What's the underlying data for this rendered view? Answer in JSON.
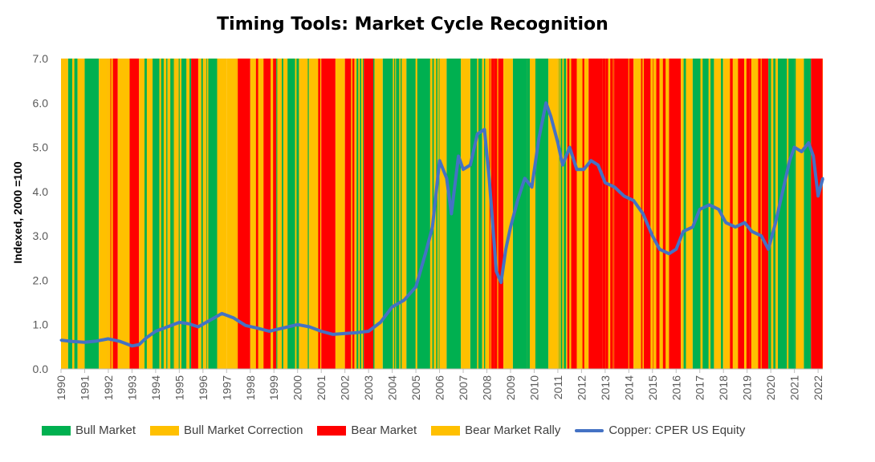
{
  "chart_data": {
    "type": "line",
    "title": "Timing Tools: Market Cycle Recognition",
    "ylabel": "Indexed, 2000 =100",
    "xlabel": "",
    "ylim": [
      0,
      7
    ],
    "xlim": [
      1990,
      2022.2
    ],
    "yticks": [
      "0.0",
      "1.0",
      "2.0",
      "3.0",
      "4.0",
      "5.0",
      "6.0",
      "7.0"
    ],
    "xticks": [
      "1990",
      "1991",
      "1992",
      "1993",
      "1994",
      "1995",
      "1996",
      "1997",
      "1998",
      "1999",
      "2000",
      "2001",
      "2002",
      "2003",
      "2004",
      "2005",
      "2006",
      "2007",
      "2008",
      "2009",
      "2010",
      "2011",
      "2012",
      "2013",
      "2014",
      "2015",
      "2016",
      "2017",
      "2018",
      "2019",
      "2020",
      "2021",
      "2022"
    ],
    "grid": false,
    "legend_position": "bottom",
    "colors": {
      "bull": "#00B050",
      "bull_correction": "#FFC000",
      "bear": "#FF0000",
      "bear_rally": "#FFC000",
      "copper": "#4472C4"
    },
    "legend": [
      {
        "label": "Bull Market",
        "color": "#00B050",
        "kind": "box"
      },
      {
        "label": "Bull Market Correction",
        "color": "#FFC000",
        "kind": "box"
      },
      {
        "label": "Bear Market",
        "color": "#FF0000",
        "kind": "box"
      },
      {
        "label": "Bear Market Rally",
        "color": "#FFC000",
        "kind": "box"
      },
      {
        "label": "Copper: CPER US Equity",
        "color": "#4472C4",
        "kind": "line"
      }
    ],
    "regimes": [
      {
        "start": 1990.0,
        "end": 1990.3,
        "state": "bull_correction"
      },
      {
        "start": 1990.3,
        "end": 1990.7,
        "state": "bull"
      },
      {
        "start": 1990.7,
        "end": 1991.0,
        "state": "bull_correction"
      },
      {
        "start": 1991.0,
        "end": 1991.6,
        "state": "bull"
      },
      {
        "start": 1991.6,
        "end": 1992.0,
        "state": "bull_correction"
      },
      {
        "start": 1992.0,
        "end": 1992.4,
        "state": "bear"
      },
      {
        "start": 1992.4,
        "end": 1992.9,
        "state": "bear_rally"
      },
      {
        "start": 1992.9,
        "end": 1993.3,
        "state": "bear"
      },
      {
        "start": 1993.3,
        "end": 1993.8,
        "state": "bull_correction"
      },
      {
        "start": 1993.8,
        "end": 1994.5,
        "state": "bull"
      },
      {
        "start": 1994.5,
        "end": 1994.9,
        "state": "bull_correction"
      },
      {
        "start": 1994.9,
        "end": 1995.5,
        "state": "bull"
      },
      {
        "start": 1995.5,
        "end": 1995.8,
        "state": "bear"
      },
      {
        "start": 1995.8,
        "end": 1996.1,
        "state": "bull_correction"
      },
      {
        "start": 1996.1,
        "end": 1996.6,
        "state": "bull"
      },
      {
        "start": 1996.6,
        "end": 1997.0,
        "state": "bull_correction"
      },
      {
        "start": 1997.0,
        "end": 1997.4,
        "state": "bear_rally"
      },
      {
        "start": 1997.4,
        "end": 1998.0,
        "state": "bear"
      },
      {
        "start": 1998.0,
        "end": 1998.6,
        "state": "bear_rally"
      },
      {
        "start": 1998.6,
        "end": 1999.1,
        "state": "bear"
      },
      {
        "start": 1999.1,
        "end": 1999.6,
        "state": "bull_correction"
      },
      {
        "start": 1999.6,
        "end": 2000.1,
        "state": "bull"
      },
      {
        "start": 2000.1,
        "end": 2000.5,
        "state": "bull_correction"
      },
      {
        "start": 2000.5,
        "end": 2001.0,
        "state": "bear_rally"
      },
      {
        "start": 2001.0,
        "end": 2001.6,
        "state": "bear"
      },
      {
        "start": 2001.6,
        "end": 2002.0,
        "state": "bear_rally"
      },
      {
        "start": 2002.0,
        "end": 2002.4,
        "state": "bear"
      },
      {
        "start": 2002.4,
        "end": 2002.8,
        "state": "bull_correction"
      },
      {
        "start": 2002.8,
        "end": 2003.2,
        "state": "bear"
      },
      {
        "start": 2003.2,
        "end": 2003.6,
        "state": "bull_correction"
      },
      {
        "start": 2003.6,
        "end": 2004.3,
        "state": "bull"
      },
      {
        "start": 2004.3,
        "end": 2004.6,
        "state": "bull_correction"
      },
      {
        "start": 2004.6,
        "end": 2006.0,
        "state": "bull"
      },
      {
        "start": 2006.0,
        "end": 2006.3,
        "state": "bull_correction"
      },
      {
        "start": 2006.3,
        "end": 2006.9,
        "state": "bull"
      },
      {
        "start": 2006.9,
        "end": 2007.3,
        "state": "bull_correction"
      },
      {
        "start": 2007.3,
        "end": 2007.8,
        "state": "bull"
      },
      {
        "start": 2007.8,
        "end": 2008.0,
        "state": "bull_correction"
      },
      {
        "start": 2008.0,
        "end": 2008.3,
        "state": "bear_rally"
      },
      {
        "start": 2008.3,
        "end": 2008.7,
        "state": "bear"
      },
      {
        "start": 2008.7,
        "end": 2009.1,
        "state": "bear_rally"
      },
      {
        "start": 2009.1,
        "end": 2009.7,
        "state": "bull"
      },
      {
        "start": 2009.7,
        "end": 2010.1,
        "state": "bull_correction"
      },
      {
        "start": 2010.1,
        "end": 2010.6,
        "state": "bull"
      },
      {
        "start": 2010.6,
        "end": 2011.0,
        "state": "bull_correction"
      },
      {
        "start": 2011.0,
        "end": 2011.4,
        "state": "bull"
      },
      {
        "start": 2011.4,
        "end": 2011.8,
        "state": "bear"
      },
      {
        "start": 2011.8,
        "end": 2012.3,
        "state": "bear_rally"
      },
      {
        "start": 2012.3,
        "end": 2012.9,
        "state": "bear"
      },
      {
        "start": 2012.9,
        "end": 2013.4,
        "state": "bear_rally"
      },
      {
        "start": 2013.4,
        "end": 2014.2,
        "state": "bear"
      },
      {
        "start": 2014.2,
        "end": 2014.6,
        "state": "bear_rally"
      },
      {
        "start": 2014.6,
        "end": 2015.3,
        "state": "bear"
      },
      {
        "start": 2015.3,
        "end": 2015.7,
        "state": "bear_rally"
      },
      {
        "start": 2015.7,
        "end": 2016.2,
        "state": "bear"
      },
      {
        "start": 2016.2,
        "end": 2016.7,
        "state": "bull_correction"
      },
      {
        "start": 2016.7,
        "end": 2017.6,
        "state": "bull"
      },
      {
        "start": 2017.6,
        "end": 2018.0,
        "state": "bull_correction"
      },
      {
        "start": 2018.0,
        "end": 2018.5,
        "state": "bear_rally"
      },
      {
        "start": 2018.5,
        "end": 2019.1,
        "state": "bear"
      },
      {
        "start": 2019.1,
        "end": 2019.5,
        "state": "bear_rally"
      },
      {
        "start": 2019.5,
        "end": 2019.9,
        "state": "bear"
      },
      {
        "start": 2019.9,
        "end": 2020.3,
        "state": "bull_correction"
      },
      {
        "start": 2020.3,
        "end": 2021.0,
        "state": "bull"
      },
      {
        "start": 2021.0,
        "end": 2021.4,
        "state": "bull_correction"
      },
      {
        "start": 2021.4,
        "end": 2021.7,
        "state": "bull"
      },
      {
        "start": 2021.7,
        "end": 2022.2,
        "state": "bear"
      }
    ],
    "series": [
      {
        "name": "Copper: CPER US Equity",
        "x": [
          1990.0,
          1990.5,
          1991.0,
          1991.5,
          1992.0,
          1992.5,
          1993.0,
          1993.3,
          1993.6,
          1994.0,
          1994.5,
          1995.0,
          1995.4,
          1995.8,
          1996.3,
          1996.8,
          1997.3,
          1997.8,
          1998.3,
          1998.8,
          1999.2,
          1999.6,
          2000.0,
          2000.5,
          2001.0,
          2001.5,
          2002.0,
          2002.5,
          2003.0,
          2003.5,
          2004.0,
          2004.5,
          2005.0,
          2005.4,
          2005.7,
          2006.0,
          2006.3,
          2006.5,
          2006.8,
          2007.0,
          2007.3,
          2007.6,
          2007.9,
          2008.1,
          2008.4,
          2008.6,
          2008.8,
          2009.0,
          2009.3,
          2009.6,
          2009.9,
          2010.2,
          2010.5,
          2010.7,
          2011.0,
          2011.2,
          2011.5,
          2011.8,
          2012.1,
          2012.4,
          2012.7,
          2013.0,
          2013.4,
          2013.8,
          2014.2,
          2014.6,
          2015.0,
          2015.3,
          2015.7,
          2016.0,
          2016.3,
          2016.7,
          2017.0,
          2017.4,
          2017.8,
          2018.1,
          2018.5,
          2018.9,
          2019.2,
          2019.6,
          2019.9,
          2020.2,
          2020.5,
          2020.8,
          2021.0,
          2021.3,
          2021.6,
          2021.8,
          2022.0,
          2022.2
        ],
        "values": [
          0.65,
          0.62,
          0.6,
          0.63,
          0.68,
          0.62,
          0.52,
          0.55,
          0.7,
          0.85,
          0.95,
          1.05,
          1.02,
          0.95,
          1.1,
          1.25,
          1.15,
          0.98,
          0.92,
          0.85,
          0.9,
          0.95,
          1.0,
          0.95,
          0.85,
          0.78,
          0.8,
          0.82,
          0.85,
          1.05,
          1.4,
          1.55,
          1.85,
          2.6,
          3.2,
          4.7,
          4.3,
          3.5,
          4.8,
          4.5,
          4.6,
          5.3,
          5.4,
          4.3,
          2.2,
          1.95,
          2.7,
          3.2,
          3.8,
          4.3,
          4.1,
          5.2,
          6.0,
          5.7,
          5.1,
          4.6,
          5.0,
          4.5,
          4.5,
          4.7,
          4.6,
          4.2,
          4.1,
          3.9,
          3.8,
          3.5,
          3.0,
          2.7,
          2.6,
          2.7,
          3.1,
          3.2,
          3.6,
          3.7,
          3.6,
          3.3,
          3.2,
          3.3,
          3.1,
          3.0,
          2.7,
          3.3,
          4.0,
          4.7,
          5.0,
          4.9,
          5.1,
          4.8,
          3.9,
          4.3
        ]
      }
    ]
  }
}
